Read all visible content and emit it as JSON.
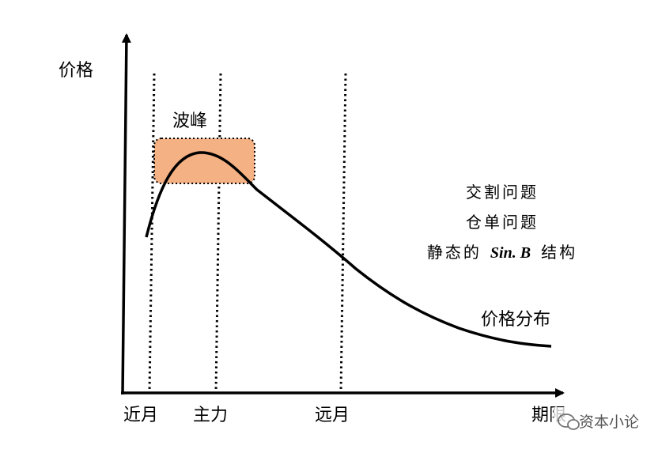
{
  "axes": {
    "y_label": "价格",
    "x_label": "期限"
  },
  "peak_label": "波峰",
  "x_markers": [
    "近月",
    "主力",
    "远月"
  ],
  "notes": {
    "line1": "交割问题",
    "line2": "仓单问题",
    "line3": {
      "prefix": "静态的",
      "emphasis": "Sin. B",
      "suffix": "结构"
    }
  },
  "curve_label": "价格分布",
  "watermark": "资本小论"
}
